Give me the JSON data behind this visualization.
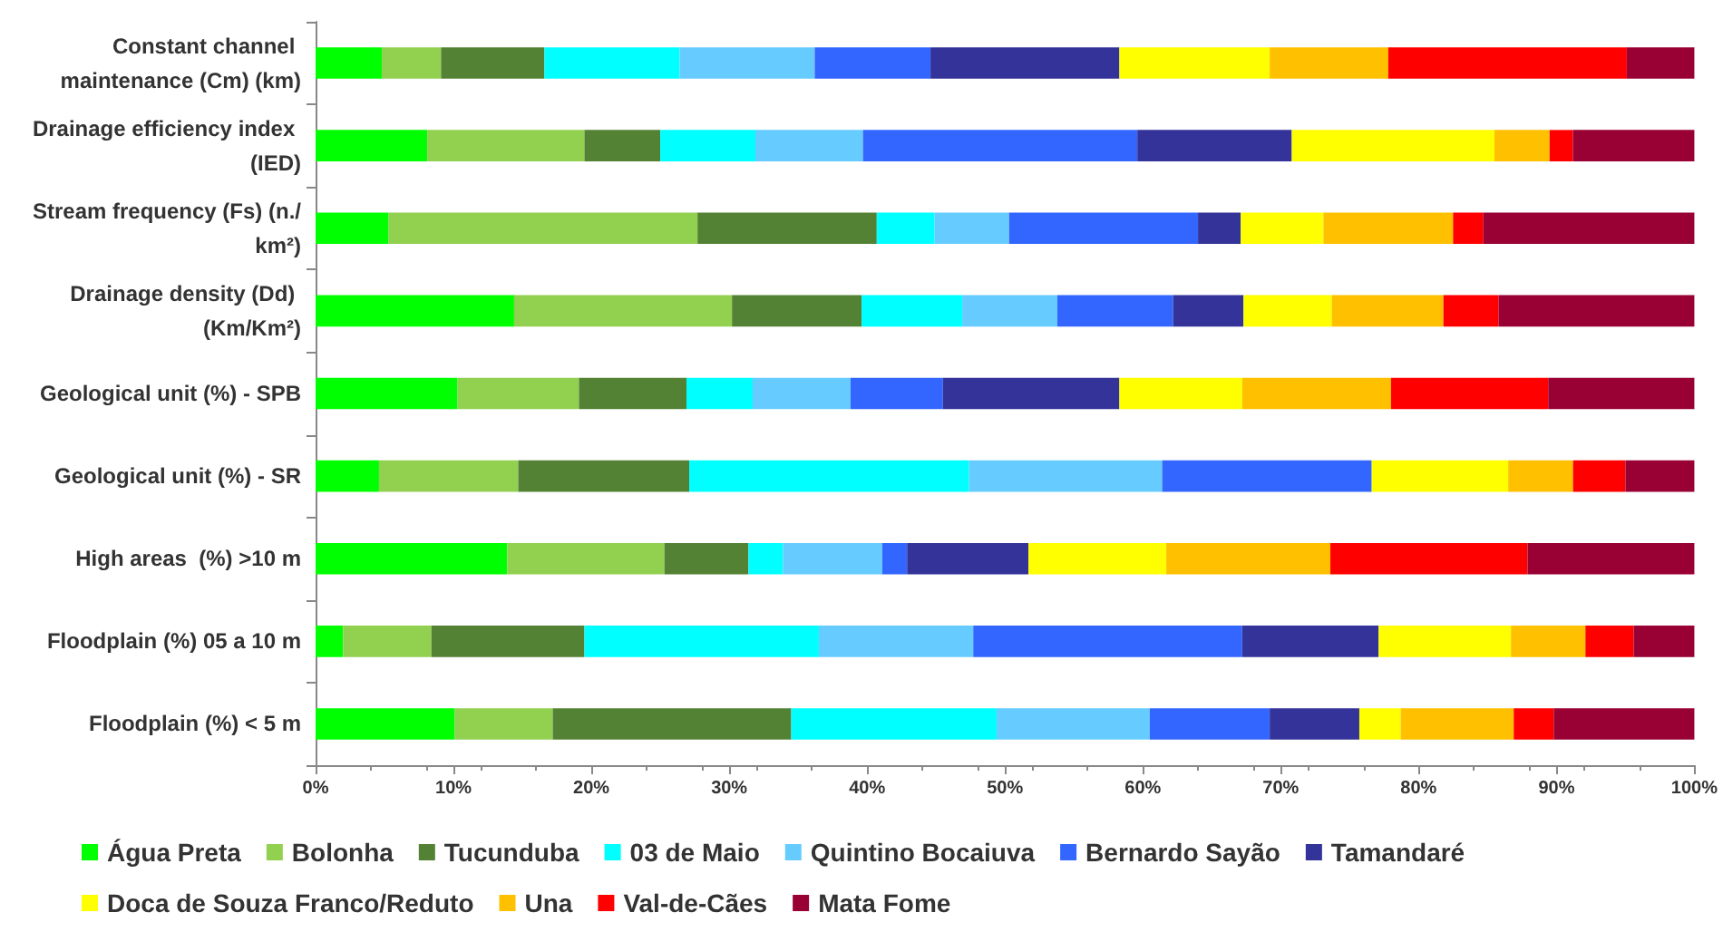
{
  "chart_data": {
    "type": "bar",
    "orientation": "horizontal",
    "stacked": true,
    "grid": false,
    "legend": "bottom",
    "categories": [
      "Constant channel maintenance (Cm) (km)",
      "Drainage efficiency index (IED)",
      "Stream frequency (Fs) (n./km²)",
      "Drainage density (Dd) (Km/Km²)",
      "Geological unit (%) - SPB",
      "Geological unit (%) - SR",
      "High areas  (%) >10 m",
      "Floodplain (%) 05 a 10 m",
      "Floodplain (%) < 5 m"
    ],
    "xlim": [
      0,
      100
    ],
    "xticks": [
      {
        "value": 0,
        "label": "0%"
      },
      {
        "value": 10,
        "label": "10%"
      },
      {
        "value": 20,
        "label": "20%"
      },
      {
        "value": 30,
        "label": "30%"
      },
      {
        "value": 40,
        "label": "40%"
      },
      {
        "value": 50,
        "label": "50%"
      },
      {
        "value": 60,
        "label": "60%"
      },
      {
        "value": 70,
        "label": "70%"
      },
      {
        "value": 80,
        "label": "80%"
      },
      {
        "value": 90,
        "label": "90%"
      },
      {
        "value": 100,
        "label": "100%"
      }
    ],
    "series": [
      {
        "name": "Água Preta",
        "color": "#00ff00",
        "values": [
          4.8,
          8.1,
          5.3,
          14.4,
          10.3,
          4.6,
          13.9,
          2.0,
          10.1
        ]
      },
      {
        "name": "Bolonha",
        "color": "#92d050",
        "values": [
          4.3,
          11.4,
          22.4,
          15.8,
          8.8,
          10.1,
          11.4,
          6.4,
          7.1
        ]
      },
      {
        "name": "Tucunduba",
        "color": "#548235",
        "values": [
          7.5,
          5.5,
          13.0,
          9.4,
          7.8,
          12.4,
          6.1,
          11.1,
          17.3
        ]
      },
      {
        "name": "03 de Maio",
        "color": "#00ffff",
        "values": [
          9.8,
          6.9,
          4.2,
          7.3,
          4.8,
          20.3,
          2.5,
          17.0,
          14.9
        ]
      },
      {
        "name": "Quintino Bocaiuva",
        "color": "#66ccff",
        "values": [
          9.8,
          7.8,
          5.4,
          6.9,
          7.1,
          14.0,
          7.2,
          11.2,
          11.1
        ]
      },
      {
        "name": "Bernardo Sayão",
        "color": "#3366ff",
        "values": [
          8.4,
          19.9,
          13.7,
          8.4,
          6.7,
          15.2,
          1.8,
          19.5,
          8.7
        ]
      },
      {
        "name": "Tamandaré",
        "color": "#333399",
        "values": [
          13.7,
          11.2,
          3.1,
          5.1,
          12.8,
          0,
          8.8,
          9.9,
          6.5
        ]
      },
      {
        "name": "Doca de Souza Franco/Reduto",
        "color": "#ffff00",
        "values": [
          10.9,
          14.7,
          6.0,
          6.4,
          8.9,
          9.9,
          10.0,
          9.6,
          3.0
        ]
      },
      {
        "name": "Una",
        "color": "#ffc000",
        "values": [
          8.6,
          4.0,
          9.4,
          8.1,
          10.8,
          4.7,
          11.9,
          5.4,
          8.2
        ]
      },
      {
        "name": "Val-de-Cães",
        "color": "#ff0000",
        "values": [
          17.3,
          1.7,
          2.2,
          4.0,
          11.4,
          3.8,
          14.3,
          3.5,
          2.9
        ]
      },
      {
        "name": "Mata Fome",
        "color": "#990033",
        "values": [
          4.9,
          8.8,
          15.3,
          14.2,
          10.6,
          5.0,
          12.1,
          4.4,
          10.2
        ]
      }
    ]
  }
}
